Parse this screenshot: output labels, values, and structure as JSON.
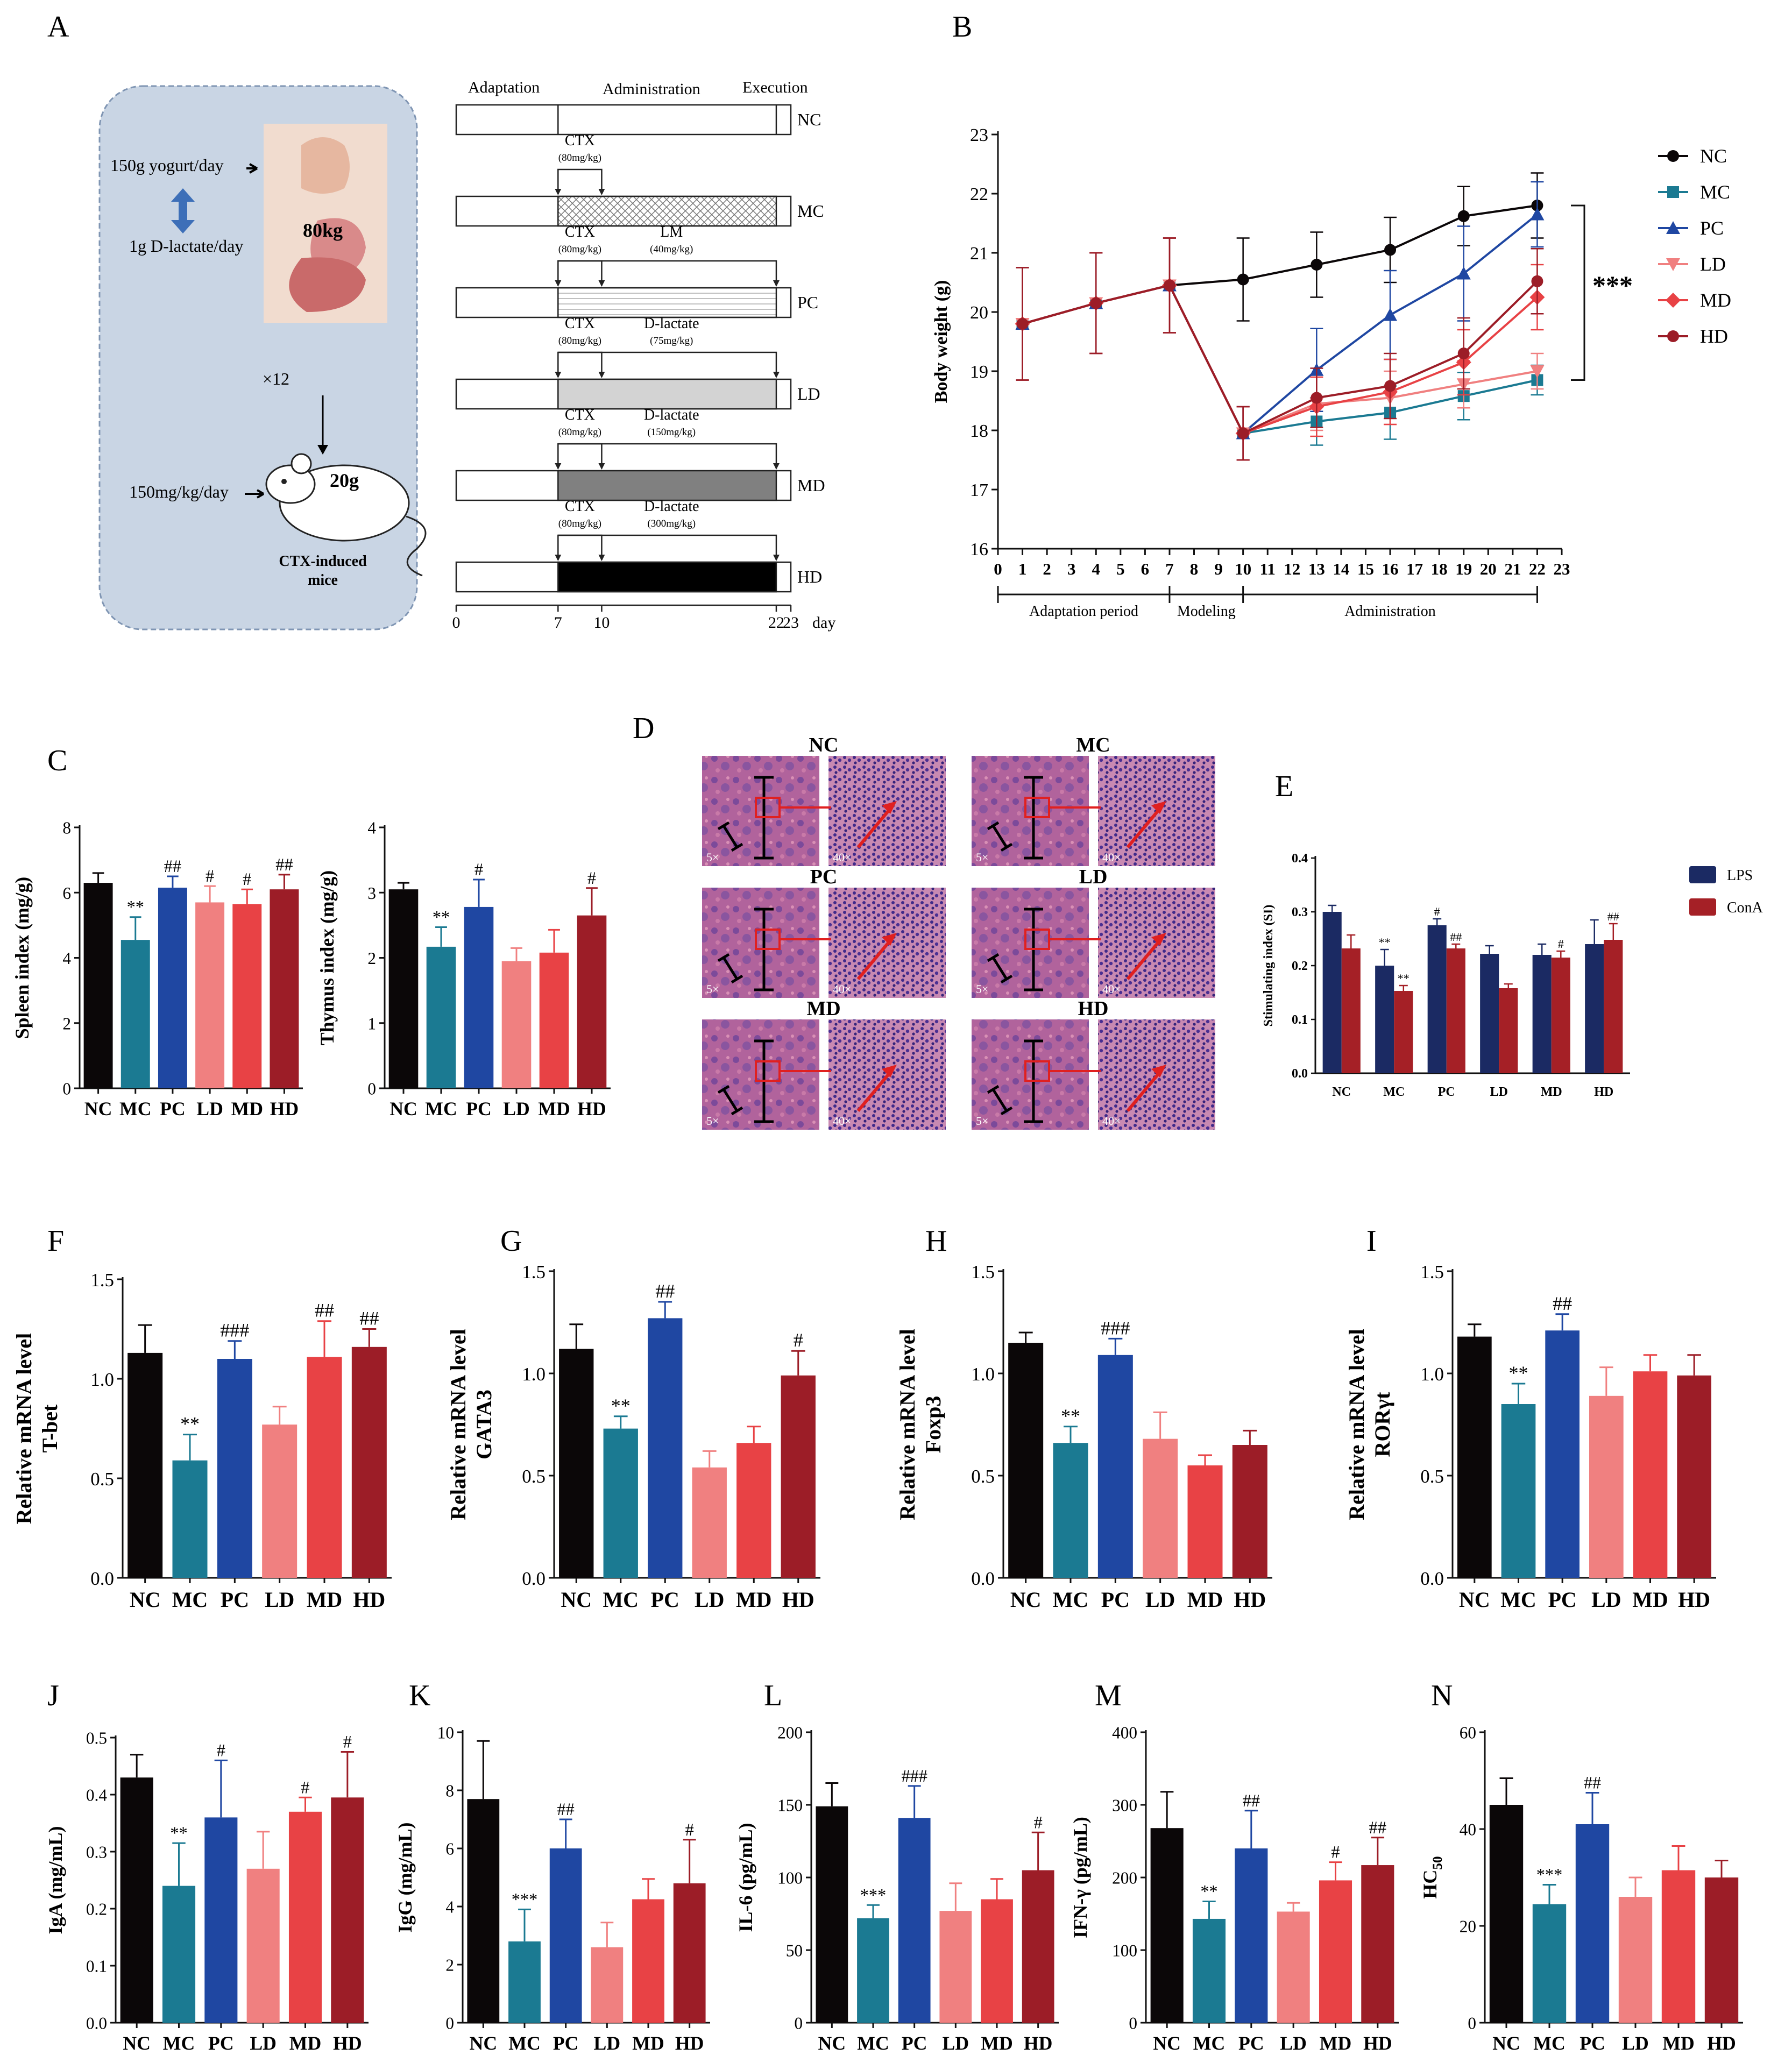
{
  "colors": {
    "NC": "#0b0708",
    "MC": "#1b7a92",
    "PC": "#1f47a2",
    "LD": "#f08080",
    "MD": "#e84245",
    "HD": "#9c1d27",
    "LPS": "#1b2a63",
    "ConA": "#a52026",
    "panel_bg": "#c9d5e4",
    "axis": "#111111"
  },
  "panelA": {
    "letter": "A",
    "human": {
      "intake1": "150g yogurt/day",
      "intake2": "1g D-lactate/day",
      "weight": "80kg",
      "factor": "×12"
    },
    "mouse": {
      "dose": "150mg/kg/day",
      "weight": "20g",
      "caption1": "CTX-induced",
      "caption2": "mice"
    },
    "schedule": {
      "phase_labels": [
        "Adaptation",
        "Administration",
        "Execution"
      ],
      "rows": [
        {
          "group": "NC",
          "treat": "",
          "dose": "",
          "drug": "",
          "drug_dose": "",
          "fill": "none"
        },
        {
          "group": "MC",
          "treat": "CTX",
          "dose": "(80mg/kg)",
          "drug": "",
          "drug_dose": "",
          "fill": "crosshatch"
        },
        {
          "group": "PC",
          "treat": "CTX",
          "dose": "(80mg/kg)",
          "drug": "LM",
          "drug_dose": "(40mg/kg)",
          "fill": "dots"
        },
        {
          "group": "LD",
          "treat": "CTX",
          "dose": "(80mg/kg)",
          "drug": "D-lactate",
          "drug_dose": "(75mg/kg)",
          "fill": "light"
        },
        {
          "group": "MD",
          "treat": "CTX",
          "dose": "(80mg/kg)",
          "drug": "D-lactate",
          "drug_dose": "(150mg/kg)",
          "fill": "medium"
        },
        {
          "group": "HD",
          "treat": "CTX",
          "dose": "(80mg/kg)",
          "drug": "D-lactate",
          "drug_dose": "(300mg/kg)",
          "fill": "dark"
        }
      ],
      "timeline_ticks": [
        "0",
        "7",
        "10",
        "22",
        "23"
      ],
      "timeline_unit": "day"
    }
  },
  "chart_data": [
    {
      "id": "B",
      "type": "line",
      "title": "",
      "xlabel": "",
      "ylabel": "Body weight (g)",
      "xlim": [
        0,
        23
      ],
      "ylim": [
        16,
        23
      ],
      "yticks": [
        "16",
        "17",
        "18",
        "19",
        "20",
        "21",
        "22",
        "23"
      ],
      "xticks": [
        "0",
        "1",
        "2",
        "3",
        "4",
        "5",
        "6",
        "7",
        "8",
        "9",
        "10",
        "11",
        "12",
        "13",
        "14",
        "15",
        "16",
        "17",
        "18",
        "19",
        "20",
        "21",
        "22",
        "23"
      ],
      "x": [
        1,
        4,
        7,
        10,
        13,
        16,
        19,
        22
      ],
      "series": [
        {
          "name": "NC",
          "values": [
            19.8,
            20.15,
            20.45,
            20.55,
            20.8,
            21.05,
            21.62,
            21.8
          ],
          "err": [
            0.95,
            0.85,
            0.8,
            0.7,
            0.55,
            0.55,
            0.5,
            0.55
          ]
        },
        {
          "name": "MC",
          "values": [
            19.8,
            20.15,
            20.45,
            17.95,
            18.15,
            18.3,
            18.58,
            18.85
          ],
          "err": [
            0.95,
            0.85,
            0.8,
            0.45,
            0.4,
            0.45,
            0.4,
            0.25
          ]
        },
        {
          "name": "PC",
          "values": [
            19.8,
            20.15,
            20.45,
            17.95,
            19.02,
            19.95,
            20.65,
            21.65
          ],
          "err": [
            0.95,
            0.85,
            0.8,
            0.45,
            0.7,
            0.75,
            0.8,
            0.55
          ]
        },
        {
          "name": "LD",
          "values": [
            19.8,
            20.15,
            20.45,
            17.95,
            18.45,
            18.55,
            18.78,
            19.0
          ],
          "err": [
            0.95,
            0.85,
            0.8,
            0.45,
            0.45,
            0.45,
            0.4,
            0.3
          ]
        },
        {
          "name": "MD",
          "values": [
            19.8,
            20.15,
            20.45,
            17.95,
            18.4,
            18.65,
            19.15,
            20.25
          ],
          "err": [
            0.95,
            0.85,
            0.8,
            0.45,
            0.5,
            0.55,
            0.55,
            0.55
          ]
        },
        {
          "name": "HD",
          "values": [
            19.8,
            20.15,
            20.45,
            17.95,
            18.55,
            18.75,
            19.3,
            20.52
          ],
          "err": [
            0.95,
            0.85,
            0.8,
            0.45,
            0.5,
            0.55,
            0.6,
            0.55
          ]
        }
      ],
      "legend": [
        "NC",
        "MC",
        "PC",
        "LD",
        "MD",
        "HD"
      ],
      "significance": "***",
      "periods": [
        "Adaptation period",
        "Modeling",
        "Administration"
      ]
    },
    {
      "id": "C1",
      "type": "bar",
      "ylabel": "Spleen index (mg/g)",
      "ylim": [
        0,
        8
      ],
      "yticks": [
        "0",
        "2",
        "4",
        "6",
        "8"
      ],
      "categories": [
        "NC",
        "MC",
        "PC",
        "LD",
        "MD",
        "HD"
      ],
      "values": [
        6.3,
        4.55,
        6.15,
        5.7,
        5.65,
        6.1
      ],
      "err": [
        0.3,
        0.7,
        0.35,
        0.5,
        0.45,
        0.45
      ],
      "labels": [
        "",
        "**",
        "##",
        "#",
        "#",
        "##"
      ]
    },
    {
      "id": "C2",
      "type": "bar",
      "ylabel": "Thymus index (mg/g)",
      "ylim": [
        0,
        4
      ],
      "yticks": [
        "0",
        "1",
        "2",
        "3",
        "4"
      ],
      "categories": [
        "NC",
        "MC",
        "PC",
        "LD",
        "MD",
        "HD"
      ],
      "values": [
        3.05,
        2.17,
        2.78,
        1.95,
        2.08,
        2.65
      ],
      "err": [
        0.1,
        0.3,
        0.42,
        0.2,
        0.35,
        0.42
      ],
      "labels": [
        "",
        "**",
        "#",
        "",
        "",
        "#"
      ]
    },
    {
      "id": "E",
      "type": "bar",
      "ylabel": "Stimulating index (SI)",
      "ylim": [
        0,
        0.4
      ],
      "yticks": [
        "0.0",
        "0.1",
        "0.2",
        "0.3",
        "0.4"
      ],
      "categories": [
        "NC",
        "MC",
        "PC",
        "LD",
        "MD",
        "HD"
      ],
      "series": [
        {
          "name": "LPS",
          "values": [
            0.3,
            0.2,
            0.275,
            0.222,
            0.22,
            0.24
          ],
          "err": [
            0.012,
            0.03,
            0.012,
            0.015,
            0.02,
            0.045
          ],
          "labels": [
            "",
            "**",
            "#",
            "",
            "",
            ""
          ]
        },
        {
          "name": "ConA",
          "values": [
            0.232,
            0.153,
            0.232,
            0.158,
            0.215,
            0.248
          ],
          "err": [
            0.025,
            0.01,
            0.008,
            0.008,
            0.012,
            0.03
          ],
          "labels": [
            "",
            "**",
            "##",
            "",
            "#",
            "##"
          ]
        }
      ],
      "legend": [
        "LPS",
        "ConA"
      ]
    },
    {
      "id": "F",
      "type": "bar",
      "ylabel": "Relative mRNA level",
      "ylabel2": "T-bet",
      "ylim": [
        0,
        1.5
      ],
      "yticks": [
        "0.0",
        "0.5",
        "1.0",
        "1.5"
      ],
      "categories": [
        "NC",
        "MC",
        "PC",
        "LD",
        "MD",
        "HD"
      ],
      "values": [
        1.13,
        0.59,
        1.1,
        0.77,
        1.11,
        1.16
      ],
      "err": [
        0.14,
        0.13,
        0.09,
        0.09,
        0.18,
        0.09
      ],
      "labels": [
        "",
        "**",
        "###",
        "",
        "##",
        "##"
      ]
    },
    {
      "id": "G",
      "type": "bar",
      "ylabel": "Relative mRNA level",
      "ylabel2": "GATA3",
      "ylim": [
        0,
        1.5
      ],
      "yticks": [
        "0.0",
        "0.5",
        "1.0",
        "1.5"
      ],
      "categories": [
        "NC",
        "MC",
        "PC",
        "LD",
        "MD",
        "HD"
      ],
      "values": [
        1.12,
        0.73,
        1.27,
        0.54,
        0.66,
        0.99
      ],
      "err": [
        0.12,
        0.06,
        0.08,
        0.08,
        0.08,
        0.12
      ],
      "labels": [
        "",
        "**",
        "##",
        "",
        "",
        "#"
      ]
    },
    {
      "id": "H",
      "type": "bar",
      "ylabel": "Relative mRNA level",
      "ylabel2": "Foxp3",
      "ylim": [
        0,
        1.5
      ],
      "yticks": [
        "0.0",
        "0.5",
        "1.0",
        "1.5"
      ],
      "categories": [
        "NC",
        "MC",
        "PC",
        "LD",
        "MD",
        "HD"
      ],
      "values": [
        1.15,
        0.66,
        1.09,
        0.68,
        0.55,
        0.65
      ],
      "err": [
        0.05,
        0.08,
        0.08,
        0.13,
        0.05,
        0.07
      ],
      "labels": [
        "",
        "**",
        "###",
        "",
        "",
        ""
      ]
    },
    {
      "id": "I",
      "type": "bar",
      "ylabel": "Relative mRNA level",
      "ylabel2": "RORγt",
      "ylim": [
        0,
        1.5
      ],
      "yticks": [
        "0.0",
        "0.5",
        "1.0",
        "1.5"
      ],
      "categories": [
        "NC",
        "MC",
        "PC",
        "LD",
        "MD",
        "HD"
      ],
      "values": [
        1.18,
        0.85,
        1.21,
        0.89,
        1.01,
        0.99
      ],
      "err": [
        0.06,
        0.1,
        0.08,
        0.14,
        0.08,
        0.1
      ],
      "labels": [
        "",
        "**",
        "##",
        "",
        "",
        ""
      ]
    },
    {
      "id": "J",
      "type": "bar",
      "ylabel": "IgA (mg/mL)",
      "ylim": [
        0,
        0.5
      ],
      "yticks": [
        "0.0",
        "0.1",
        "0.2",
        "0.3",
        "0.4",
        "0.5"
      ],
      "categories": [
        "NC",
        "MC",
        "PC",
        "LD",
        "MD",
        "HD"
      ],
      "values": [
        0.43,
        0.24,
        0.36,
        0.27,
        0.37,
        0.395
      ],
      "err": [
        0.04,
        0.075,
        0.1,
        0.065,
        0.025,
        0.08
      ],
      "labels": [
        "",
        "**",
        "#",
        "",
        "#",
        "#"
      ]
    },
    {
      "id": "K",
      "type": "bar",
      "ylabel": "IgG (mg/mL)",
      "ylim": [
        0,
        10
      ],
      "yticks": [
        "0",
        "2",
        "4",
        "6",
        "8",
        "10"
      ],
      "categories": [
        "NC",
        "MC",
        "PC",
        "LD",
        "MD",
        "HD"
      ],
      "values": [
        7.7,
        2.8,
        6.0,
        2.6,
        4.25,
        4.8
      ],
      "err": [
        2.0,
        1.1,
        1.0,
        0.85,
        0.7,
        1.5
      ],
      "labels": [
        "",
        "***",
        "##",
        "",
        "",
        "#"
      ]
    },
    {
      "id": "L",
      "type": "bar",
      "ylabel": "IL-6 (pg/mL)",
      "ylim": [
        0,
        200
      ],
      "yticks": [
        "0",
        "50",
        "100",
        "150",
        "200"
      ],
      "categories": [
        "NC",
        "MC",
        "PC",
        "LD",
        "MD",
        "HD"
      ],
      "values": [
        149,
        72,
        141,
        77,
        85,
        105
      ],
      "err": [
        16,
        9,
        22,
        19,
        14,
        26
      ],
      "labels": [
        "",
        "***",
        "###",
        "",
        "",
        "#"
      ]
    },
    {
      "id": "M",
      "type": "bar",
      "ylabel": "IFN-γ (pg/mL)",
      "ylim": [
        0,
        400
      ],
      "yticks": [
        "0",
        "100",
        "200",
        "300",
        "400"
      ],
      "categories": [
        "NC",
        "MC",
        "PC",
        "LD",
        "MD",
        "HD"
      ],
      "values": [
        268,
        143,
        240,
        153,
        196,
        217
      ],
      "err": [
        50,
        24,
        52,
        12,
        25,
        38
      ],
      "labels": [
        "",
        "**",
        "##",
        "",
        "#",
        "##"
      ]
    },
    {
      "id": "N",
      "type": "bar",
      "ylabel": "HC",
      "ylabel_sub": "50",
      "ylim": [
        0,
        60
      ],
      "yticks": [
        "0",
        "20",
        "40",
        "60"
      ],
      "categories": [
        "NC",
        "MC",
        "PC",
        "LD",
        "MD",
        "HD"
      ],
      "values": [
        45,
        24.5,
        41,
        26,
        31.5,
        30
      ],
      "err": [
        5.5,
        4,
        6.5,
        4,
        5,
        3.5
      ],
      "labels": [
        "",
        "***",
        "##",
        "",
        "",
        ""
      ]
    }
  ],
  "panelD": {
    "letter": "D",
    "groups": [
      "NC",
      "MC",
      "PC",
      "LD",
      "MD",
      "HD"
    ],
    "mag_low": "5×",
    "mag_high": "40×"
  },
  "letters": {
    "B": "B",
    "C": "C",
    "E": "E",
    "F": "F",
    "G": "G",
    "H": "H",
    "I": "I",
    "J": "J",
    "K": "K",
    "L": "L",
    "M": "M",
    "N": "N"
  }
}
